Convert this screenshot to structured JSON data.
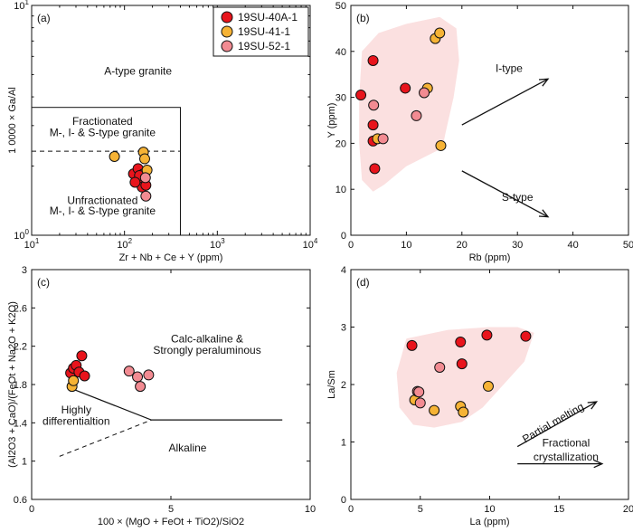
{
  "colors": {
    "s40": "#e8141c",
    "s41": "#f6b335",
    "s52": "#f28b92",
    "field": "#fbe0e0"
  },
  "legend": [
    "19SU-40A-1",
    "19SU-41-1",
    "19SU-52-1"
  ],
  "chart_data": [
    {
      "type": "scatter",
      "panel": "(a)",
      "xlabel": "Zr + Nb + Ce + Y (ppm)",
      "ylabel": "1 0000 × Ga/Al",
      "xscale": "log",
      "yscale": "log",
      "xlim": [
        10,
        10000
      ],
      "ylim": [
        1,
        10
      ],
      "xticks": [
        {
          "v": 10,
          "b": "10",
          "e": "1"
        },
        {
          "v": 100,
          "b": "10",
          "e": "2"
        },
        {
          "v": 1000,
          "b": "10",
          "e": "3"
        },
        {
          "v": 10000,
          "b": "10",
          "e": "4"
        }
      ],
      "yticks": [
        {
          "v": 1,
          "b": "10",
          "e": "0"
        },
        {
          "v": 10,
          "b": "10",
          "e": "1"
        }
      ],
      "annotations": [
        {
          "text": "A-type granite",
          "x": 140,
          "y": 5.0
        },
        {
          "text": "Fractionated",
          "x": 58,
          "y": 3.02
        },
        {
          "text": "M-, I- & S-type granite",
          "x": 58,
          "y": 2.7
        },
        {
          "text": "Unfractionated",
          "x": 58,
          "y": 1.37
        },
        {
          "text": "M-, I- & S-type granite",
          "x": 58,
          "y": 1.23
        }
      ],
      "field_box": {
        "x": [
          10,
          400
        ],
        "y": [
          1,
          3.6
        ]
      },
      "dashed_line": {
        "x": [
          10,
          400
        ],
        "y": [
          2.32,
          2.32
        ]
      },
      "series": [
        {
          "name": "19SU-40A-1",
          "x": [
            125,
            140,
            150,
            155,
            160,
            170,
            145,
            130
          ],
          "y": [
            1.85,
            1.95,
            1.75,
            1.62,
            1.85,
            1.65,
            1.82,
            1.7
          ]
        },
        {
          "name": "19SU-41-1",
          "x": [
            78,
            160,
            175,
            165
          ],
          "y": [
            2.2,
            2.3,
            1.92,
            2.15
          ]
        },
        {
          "name": "19SU-52-1",
          "x": [
            168,
            170
          ],
          "y": [
            1.78,
            1.48
          ]
        }
      ]
    },
    {
      "type": "scatter",
      "panel": "(b)",
      "xlabel": "Rb (ppm)",
      "ylabel": "Y (ppm)",
      "xlim": [
        0,
        50
      ],
      "ylim": [
        0,
        50
      ],
      "xticks": [
        0,
        10,
        20,
        30,
        40,
        50
      ],
      "yticks": [
        0,
        10,
        20,
        30,
        40,
        50
      ],
      "annotations": [
        {
          "text": "I-type",
          "x": 28.5,
          "y": 35.5
        },
        {
          "text": "S-type",
          "x": 30,
          "y": 7.5
        }
      ],
      "arrows": [
        {
          "from": [
            20,
            24
          ],
          "to": [
            35.5,
            34
          ]
        },
        {
          "from": [
            20,
            14
          ],
          "to": [
            35.5,
            4
          ]
        }
      ],
      "field": [
        [
          5,
          44
        ],
        [
          10,
          46
        ],
        [
          16,
          47.5
        ],
        [
          19,
          45
        ],
        [
          19.5,
          38
        ],
        [
          18.5,
          30
        ],
        [
          17,
          22
        ],
        [
          16.5,
          19
        ],
        [
          10,
          15
        ],
        [
          6,
          11
        ],
        [
          4,
          9.5
        ],
        [
          2,
          12
        ],
        [
          1.5,
          20
        ],
        [
          1.5,
          30
        ],
        [
          2,
          40
        ]
      ],
      "series": [
        {
          "name": "19SU-40A-1",
          "x": [
            1.8,
            4,
            4,
            4,
            4.3,
            9.8
          ],
          "y": [
            30.5,
            38,
            24,
            20.5,
            14.5,
            32
          ]
        },
        {
          "name": "19SU-41-1",
          "x": [
            4.8,
            13.8,
            15.2,
            16,
            16.2
          ],
          "y": [
            21,
            32,
            42.8,
            44,
            19.5
          ]
        },
        {
          "name": "19SU-52-1",
          "x": [
            4.1,
            5.8,
            11.8,
            13.2
          ],
          "y": [
            28.3,
            21,
            26,
            31
          ]
        }
      ]
    },
    {
      "type": "scatter",
      "panel": "(c)",
      "xlabel": "100 × (MgO + FeOt + TiO2)/SiO2",
      "ylabel": "(Al2O3 + CaO)/(FeOt + Na2O + K2O)",
      "xlim": [
        0,
        10
      ],
      "ylim": [
        0.6,
        3.0
      ],
      "xticks": [
        0,
        5,
        10
      ],
      "yticks": [
        0.6,
        1.0,
        1.4,
        1.8,
        2.2,
        2.6,
        3.0
      ],
      "annotations": [
        {
          "text": "Calc-alkaline &",
          "x": 6.3,
          "y": 2.24
        },
        {
          "text": "Strongly peraluminous",
          "x": 6.3,
          "y": 2.12
        },
        {
          "text": "Highly",
          "x": 1.6,
          "y": 1.5
        },
        {
          "text": "differentialtion",
          "x": 1.6,
          "y": 1.38
        },
        {
          "text": "Alkaline",
          "x": 5.6,
          "y": 1.1
        }
      ],
      "solid_line": {
        "x": [
          1.5,
          4.3,
          9.0
        ],
        "y": [
          1.75,
          1.43,
          1.43
        ]
      },
      "dashed_line": {
        "x": [
          1.0,
          4.3
        ],
        "y": [
          1.05,
          1.43
        ]
      },
      "series": [
        {
          "name": "19SU-40A-1",
          "x": [
            1.4,
            1.5,
            1.6,
            1.7,
            1.8,
            1.9
          ],
          "y": [
            1.92,
            1.97,
            2.0,
            1.93,
            2.1,
            1.89
          ]
        },
        {
          "name": "19SU-41-1",
          "x": [
            1.45,
            1.5
          ],
          "y": [
            1.78,
            1.84
          ]
        },
        {
          "name": "19SU-52-1",
          "x": [
            3.5,
            3.8,
            3.9,
            4.2
          ],
          "y": [
            1.94,
            1.88,
            1.78,
            1.9
          ]
        }
      ]
    },
    {
      "type": "scatter",
      "panel": "(d)",
      "xlabel": "La (ppm)",
      "ylabel": "La/Sm",
      "xlim": [
        0,
        20
      ],
      "ylim": [
        0,
        4
      ],
      "xticks": [
        0,
        5,
        10,
        15,
        20
      ],
      "yticks": [
        0,
        1,
        2,
        3,
        4
      ],
      "annotations": [
        {
          "text": "Partial melting",
          "x": 14.7,
          "y": 1.28,
          "rotate": -30
        },
        {
          "text": "Fractional",
          "x": 15.5,
          "y": 0.92
        },
        {
          "text": "crystallization",
          "x": 15.5,
          "y": 0.68
        }
      ],
      "arrows": [
        {
          "from": [
            12,
            0.92
          ],
          "to": [
            17.7,
            1.7
          ]
        },
        {
          "from": [
            12,
            0.62
          ],
          "to": [
            18.1,
            0.62
          ]
        }
      ],
      "field": [
        [
          4,
          2.8
        ],
        [
          7,
          2.95
        ],
        [
          10,
          3.0
        ],
        [
          12,
          3.0
        ],
        [
          13.2,
          2.9
        ],
        [
          12.5,
          2.4
        ],
        [
          11,
          2.0
        ],
        [
          9.5,
          1.6
        ],
        [
          8,
          1.35
        ],
        [
          6,
          1.25
        ],
        [
          4.5,
          1.3
        ],
        [
          3.5,
          1.6
        ],
        [
          3.3,
          2.2
        ]
      ],
      "series": [
        {
          "name": "19SU-40A-1",
          "x": [
            4.4,
            7.9,
            8.0,
            9.8,
            12.6
          ],
          "y": [
            2.68,
            2.74,
            2.36,
            2.86,
            2.84
          ]
        },
        {
          "name": "19SU-41-1",
          "x": [
            4.6,
            6.0,
            7.9,
            8.1,
            9.9
          ],
          "y": [
            1.73,
            1.55,
            1.62,
            1.52,
            1.97
          ]
        },
        {
          "name": "19SU-52-1",
          "x": [
            4.8,
            4.9,
            5.0,
            6.4
          ],
          "y": [
            1.88,
            1.87,
            1.68,
            2.3
          ]
        }
      ]
    }
  ]
}
